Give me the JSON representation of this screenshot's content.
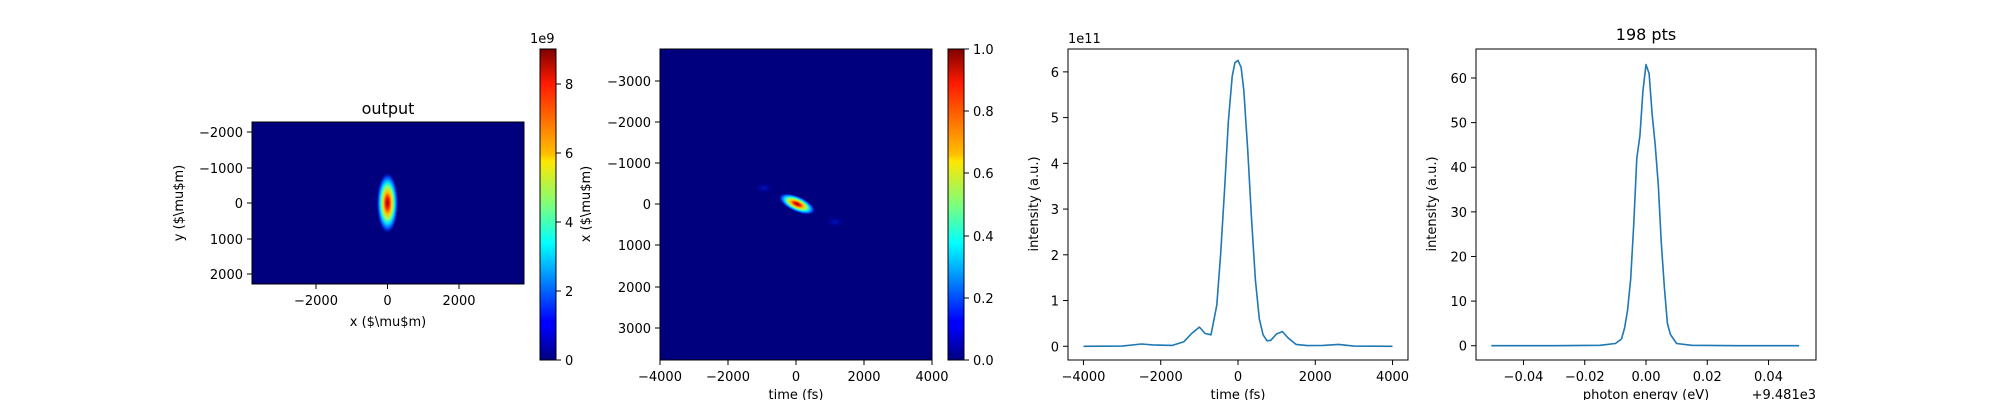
{
  "chart_data": [
    {
      "type": "heatmap",
      "title": "output",
      "xlabel": "x ($\\mu$m)",
      "ylabel": "y ($\\mu$m)",
      "x_ticks": [
        "−2000",
        "0",
        "2000"
      ],
      "y_ticks": [
        "−2000",
        "−1000",
        "0",
        "1000",
        "2000"
      ],
      "xlim": [
        -3800,
        3800
      ],
      "ylim": [
        2300,
        -2300
      ],
      "colormap": "jet",
      "spot": {
        "x": 0,
        "y": 0,
        "sigma_x": 140,
        "sigma_y": 450
      },
      "colorbar": {
        "range": [
          0,
          9
        ],
        "ticks": [
          "0",
          "2",
          "4",
          "6",
          "8"
        ],
        "offset_label": "1e9"
      }
    },
    {
      "type": "heatmap",
      "title": "",
      "xlabel": "time (fs)",
      "ylabel": "x ($\\mu$m)",
      "x_ticks": [
        "−4000",
        "−2000",
        "0",
        "2000",
        "4000"
      ],
      "y_ticks": [
        "−3000",
        "−2000",
        "−1000",
        "0",
        "1000",
        "2000",
        "3000"
      ],
      "xlim": [
        -4000,
        4000
      ],
      "ylim": [
        3800,
        -3800
      ],
      "colormap": "jet",
      "spot": {
        "x": 0,
        "y": 0,
        "tilt": "negative"
      },
      "colorbar": {
        "range": [
          0,
          1
        ],
        "ticks": [
          "0.0",
          "0.2",
          "0.4",
          "0.6",
          "0.8",
          "1.0"
        ],
        "offset_label": ""
      }
    },
    {
      "type": "line",
      "title": "",
      "xlabel": "time (fs)",
      "ylabel": "intensity (a.u.)",
      "x_ticks": [
        "−4000",
        "−2000",
        "0",
        "2000",
        "4000"
      ],
      "y_ticks": [
        "0",
        "1",
        "2",
        "3",
        "4",
        "5",
        "6"
      ],
      "offset_label": "1e11",
      "xlim": [
        -4400,
        4400
      ],
      "ylim": [
        -0.3,
        6.5
      ],
      "color": "#1f77b4",
      "x": [
        -4000,
        -3000,
        -2500,
        -2200,
        -1700,
        -1400,
        -1200,
        -1000,
        -850,
        -700,
        -550,
        -450,
        -350,
        -250,
        -150,
        -80,
        0,
        80,
        150,
        250,
        350,
        450,
        550,
        650,
        750,
        850,
        1000,
        1150,
        1300,
        1500,
        1800,
        2200,
        2600,
        3000,
        4000
      ],
      "y": [
        0,
        0.005,
        0.05,
        0.03,
        0.02,
        0.1,
        0.28,
        0.42,
        0.28,
        0.25,
        0.9,
        2.0,
        3.4,
        4.9,
        5.9,
        6.2,
        6.25,
        6.1,
        5.6,
        4.3,
        2.8,
        1.45,
        0.6,
        0.25,
        0.12,
        0.13,
        0.27,
        0.32,
        0.18,
        0.04,
        0.015,
        0.02,
        0.04,
        0.005,
        0
      ]
    },
    {
      "type": "line",
      "title": "198 pts",
      "xlabel": "photon energy (eV)",
      "ylabel": "intensity (a.u.)",
      "x_ticks": [
        "−0.04",
        "−0.02",
        "0.00",
        "0.02",
        "0.04"
      ],
      "y_ticks": [
        "0",
        "10",
        "20",
        "30",
        "40",
        "50",
        "60"
      ],
      "offset_label": "+9.481e3",
      "xlim": [
        -0.0555,
        0.0555
      ],
      "ylim": [
        -3.2,
        66.5
      ],
      "color": "#1f77b4",
      "x": [
        -0.0505,
        -0.04,
        -0.03,
        -0.015,
        -0.01,
        -0.008,
        -0.007,
        -0.006,
        -0.005,
        -0.004,
        -0.003,
        -0.002,
        -0.001,
        0,
        0.001,
        0.002,
        0.003,
        0.004,
        0.005,
        0.006,
        0.007,
        0.008,
        0.01,
        0.015,
        0.03,
        0.05
      ],
      "y": [
        0,
        0,
        0,
        0.1,
        0.5,
        1.5,
        4,
        8,
        15,
        27,
        42,
        47,
        57,
        63,
        61,
        52,
        45,
        36,
        23,
        13,
        5,
        2.5,
        0.5,
        0.1,
        0,
        0
      ]
    }
  ]
}
